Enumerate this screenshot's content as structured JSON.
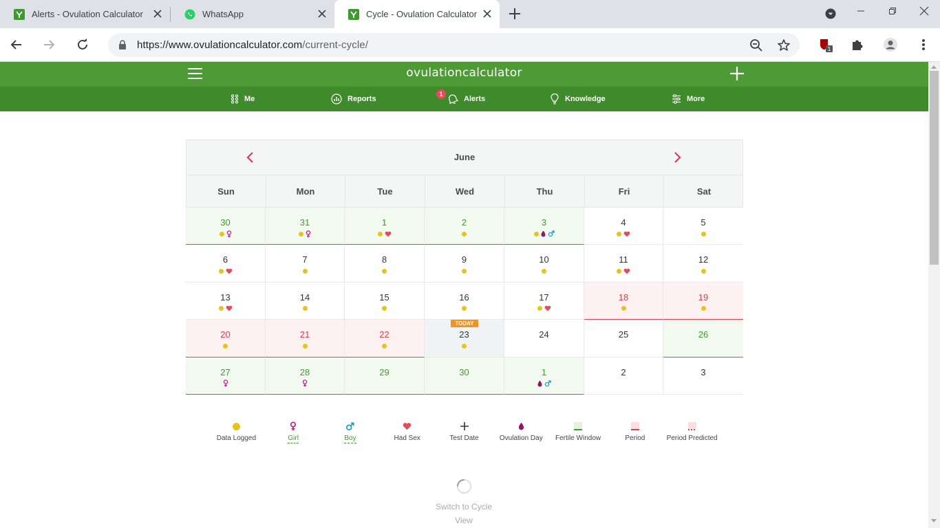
{
  "browser": {
    "tabs": [
      {
        "title": "Alerts - Ovulation Calculator",
        "active": false
      },
      {
        "title": "WhatsApp",
        "active": false
      },
      {
        "title": "Cycle - Ovulation Calculator",
        "active": true
      }
    ],
    "url_host": "https://www.ovulationcalculator.com",
    "url_path": "/current-cycle/",
    "extension_badge": "1"
  },
  "site": {
    "brand": "ovulationcalculator",
    "nav": [
      {
        "label": "Me",
        "icon": "grid-icon"
      },
      {
        "label": "Reports",
        "icon": "chart-icon"
      },
      {
        "label": "Alerts",
        "icon": "bell-icon",
        "badge": "1"
      },
      {
        "label": "Knowledge",
        "icon": "bulb-icon"
      },
      {
        "label": "More",
        "icon": "sliders-icon"
      }
    ],
    "accent": "#4e9a37"
  },
  "calendar": {
    "month": "June",
    "today_label": "TODAY",
    "weekdays": [
      "Sun",
      "Mon",
      "Tue",
      "Wed",
      "Thu",
      "Fri",
      "Sat"
    ],
    "weeks": [
      [
        {
          "d": "30",
          "type": "fertile",
          "marks": [
            "dot",
            "girl"
          ]
        },
        {
          "d": "31",
          "type": "fertile",
          "marks": [
            "dot",
            "girl"
          ]
        },
        {
          "d": "1",
          "type": "fertile",
          "marks": [
            "dot",
            "heart"
          ]
        },
        {
          "d": "2",
          "type": "fertile",
          "marks": [
            "dot"
          ]
        },
        {
          "d": "3",
          "type": "fertile",
          "marks": [
            "dot",
            "ovulation",
            "boy"
          ]
        },
        {
          "d": "4",
          "type": "",
          "marks": [
            "dot",
            "heart"
          ]
        },
        {
          "d": "5",
          "type": "",
          "marks": [
            "dot"
          ]
        }
      ],
      [
        {
          "d": "6",
          "type": "",
          "marks": [
            "dot",
            "heart"
          ]
        },
        {
          "d": "7",
          "type": "",
          "marks": [
            "dot"
          ]
        },
        {
          "d": "8",
          "type": "",
          "marks": [
            "dot"
          ]
        },
        {
          "d": "9",
          "type": "",
          "marks": [
            "dot"
          ]
        },
        {
          "d": "10",
          "type": "",
          "marks": [
            "dot"
          ]
        },
        {
          "d": "11",
          "type": "",
          "marks": [
            "dot",
            "heart"
          ]
        },
        {
          "d": "12",
          "type": "",
          "marks": [
            "dot"
          ]
        }
      ],
      [
        {
          "d": "13",
          "type": "",
          "marks": [
            "dot",
            "heart"
          ]
        },
        {
          "d": "14",
          "type": "",
          "marks": [
            "dot"
          ]
        },
        {
          "d": "15",
          "type": "",
          "marks": [
            "dot"
          ]
        },
        {
          "d": "16",
          "type": "",
          "marks": [
            "dot"
          ]
        },
        {
          "d": "17",
          "type": "",
          "marks": [
            "dot",
            "heart"
          ]
        },
        {
          "d": "18",
          "type": "period",
          "marks": [
            "dot"
          ]
        },
        {
          "d": "19",
          "type": "period",
          "marks": [
            "dot"
          ]
        }
      ],
      [
        {
          "d": "20",
          "type": "period",
          "marks": [
            "dot"
          ]
        },
        {
          "d": "21",
          "type": "period",
          "marks": [
            "dot"
          ]
        },
        {
          "d": "22",
          "type": "period",
          "marks": [
            "dot"
          ]
        },
        {
          "d": "23",
          "type": "today",
          "marks": [
            "dot"
          ]
        },
        {
          "d": "24",
          "type": "",
          "marks": []
        },
        {
          "d": "25",
          "type": "",
          "marks": []
        },
        {
          "d": "26",
          "type": "fertile",
          "marks": []
        }
      ],
      [
        {
          "d": "27",
          "type": "fertile",
          "marks": [
            "girl"
          ]
        },
        {
          "d": "28",
          "type": "fertile",
          "marks": [
            "girl"
          ]
        },
        {
          "d": "29",
          "type": "fertile",
          "marks": []
        },
        {
          "d": "30",
          "type": "fertile",
          "marks": []
        },
        {
          "d": "1",
          "type": "fertile",
          "marks": [
            "ovulation",
            "boy"
          ]
        },
        {
          "d": "2",
          "type": "",
          "marks": []
        },
        {
          "d": "3",
          "type": "",
          "marks": []
        }
      ]
    ],
    "colors": {
      "dot": "#e8c31d",
      "girl": "#c4168b",
      "boy": "#1f97c9",
      "heart": "#e64a5b",
      "ovulation": "#8b1a5e",
      "fertile": "#3f9b2a",
      "period": "#d6404f"
    }
  },
  "legend": [
    {
      "key": "dot",
      "label": "Data Logged"
    },
    {
      "key": "girl",
      "label": "Girl"
    },
    {
      "key": "boy",
      "label": "Boy"
    },
    {
      "key": "heart",
      "label": "Had Sex"
    },
    {
      "key": "plus",
      "label": "Test Date"
    },
    {
      "key": "ovulation",
      "label": "Ovulation Day"
    },
    {
      "key": "fertile",
      "label": "Fertile Window"
    },
    {
      "key": "period",
      "label": "Period"
    },
    {
      "key": "predicted",
      "label": "Period Predicted"
    }
  ],
  "switch_view": {
    "label": "Switch to Cycle View"
  }
}
